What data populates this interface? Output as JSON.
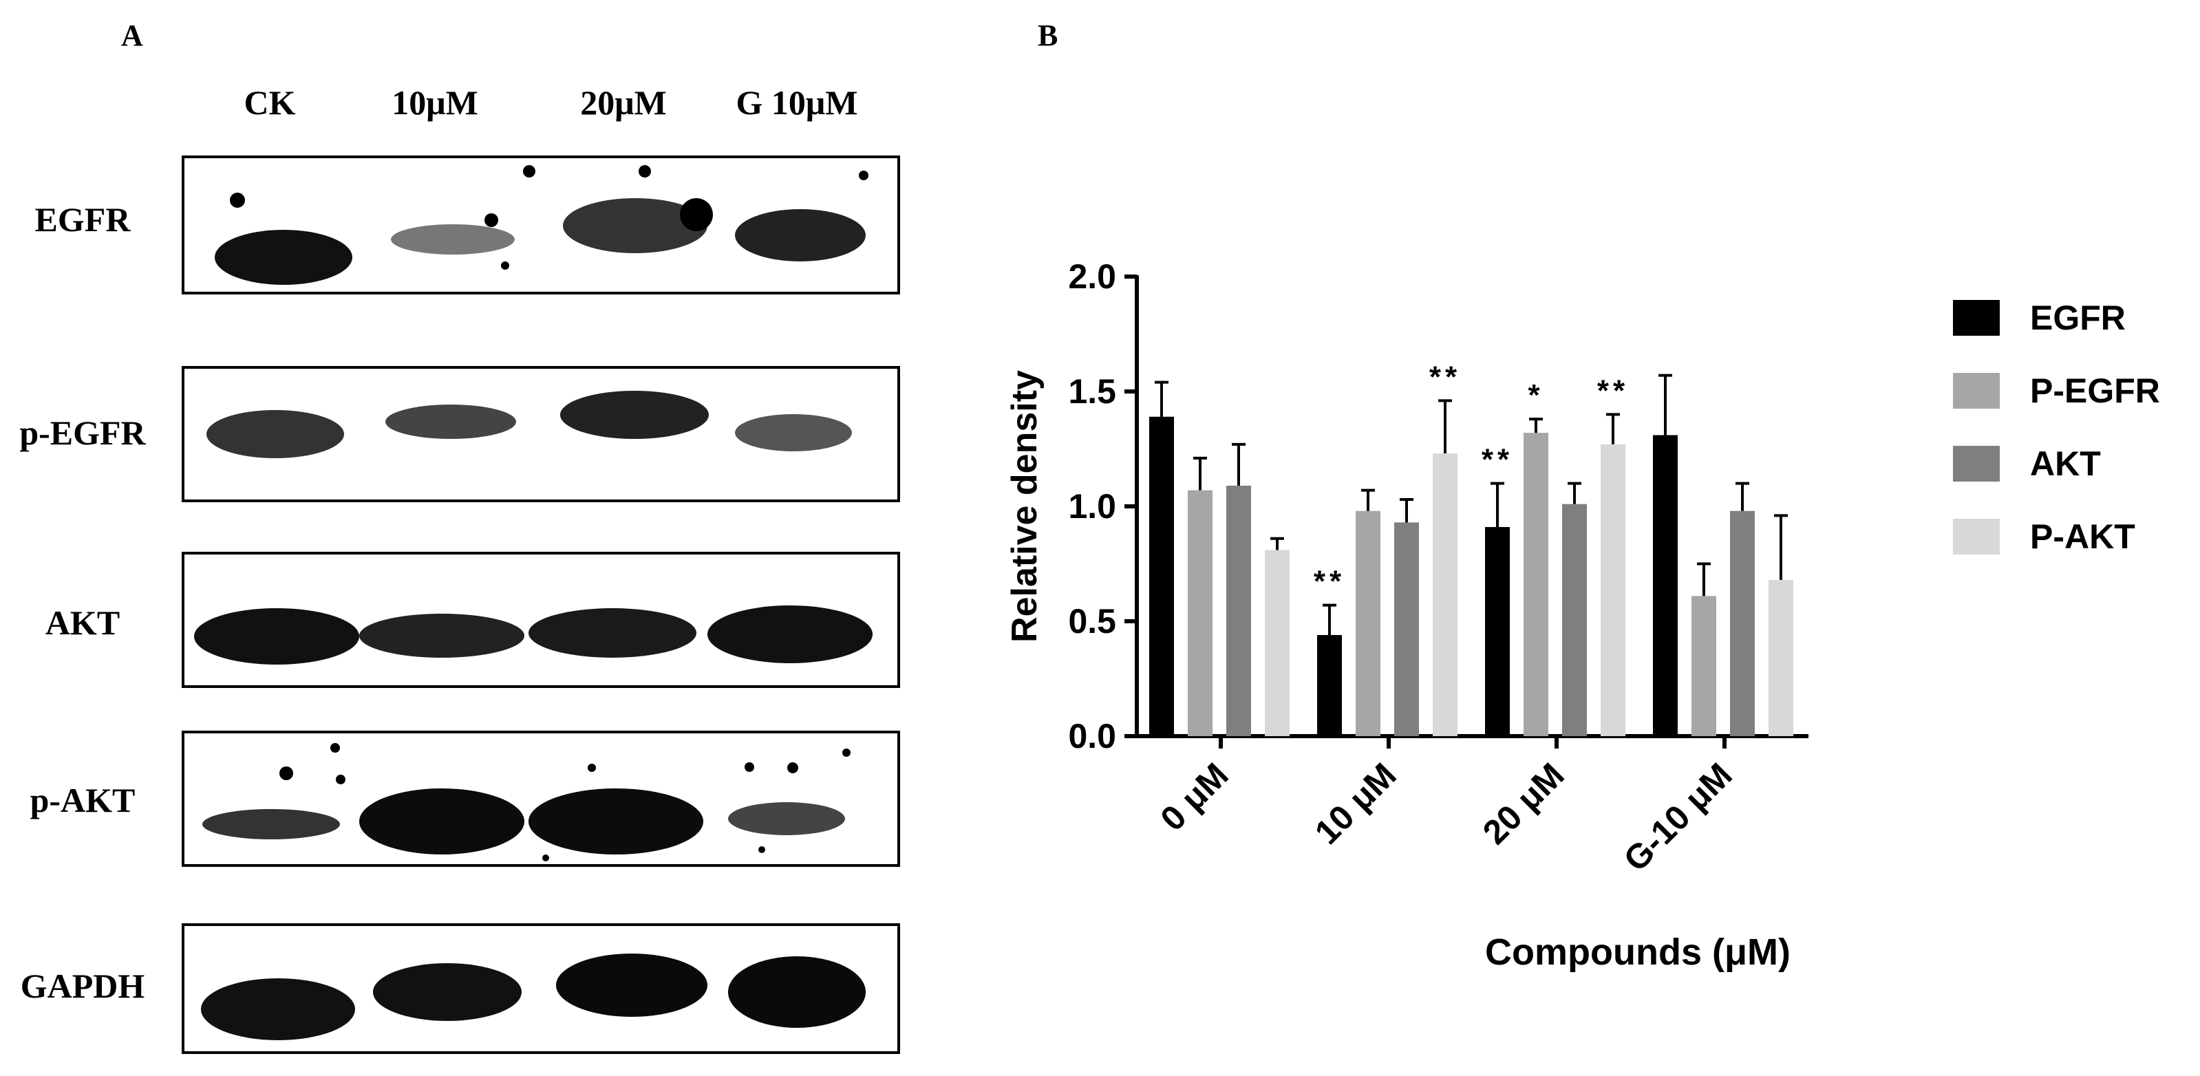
{
  "panel_a": {
    "letter": "A",
    "lanes": [
      "CK",
      "10μM",
      "20μM",
      "G 10μM"
    ],
    "blots": [
      {
        "label": "EGFR"
      },
      {
        "label": "p-EGFR"
      },
      {
        "label": "AKT"
      },
      {
        "label": "p-AKT"
      },
      {
        "label": "GAPDH"
      }
    ]
  },
  "panel_b": {
    "letter": "B"
  },
  "colors": {
    "EGFR": "#000000",
    "P-EGFR": "#a6a6a8",
    "AKT": "#7f7f7f",
    "P-AKT": "#d8d8d8"
  },
  "chart_data": {
    "type": "bar",
    "title": "",
    "xlabel": "Compounds (μM)",
    "ylabel": "Relative density",
    "ylim": [
      0,
      2.0
    ],
    "yticks": [
      "0.0",
      "0.5",
      "1.0",
      "1.5",
      "2.0"
    ],
    "categories": [
      "0 μM",
      "10 μM",
      "20 μM",
      "G-10 μM"
    ],
    "legend_position": "right",
    "series": [
      {
        "name": "EGFR",
        "values": [
          1.39,
          0.44,
          0.91,
          1.31
        ],
        "errors": [
          0.15,
          0.13,
          0.19,
          0.26
        ],
        "sig": [
          "",
          "**",
          "**",
          ""
        ]
      },
      {
        "name": "P-EGFR",
        "values": [
          1.07,
          0.98,
          1.32,
          0.61
        ],
        "errors": [
          0.14,
          0.09,
          0.06,
          0.14
        ],
        "sig": [
          "",
          "",
          "*",
          ""
        ]
      },
      {
        "name": "AKT",
        "values": [
          1.09,
          0.93,
          1.01,
          0.98
        ],
        "errors": [
          0.18,
          0.1,
          0.09,
          0.12
        ],
        "sig": [
          "",
          "",
          "",
          ""
        ]
      },
      {
        "name": "P-AKT",
        "values": [
          0.81,
          1.23,
          1.27,
          0.68
        ],
        "errors": [
          0.05,
          0.23,
          0.13,
          0.28
        ],
        "sig": [
          "",
          "**",
          "**",
          ""
        ]
      }
    ]
  }
}
